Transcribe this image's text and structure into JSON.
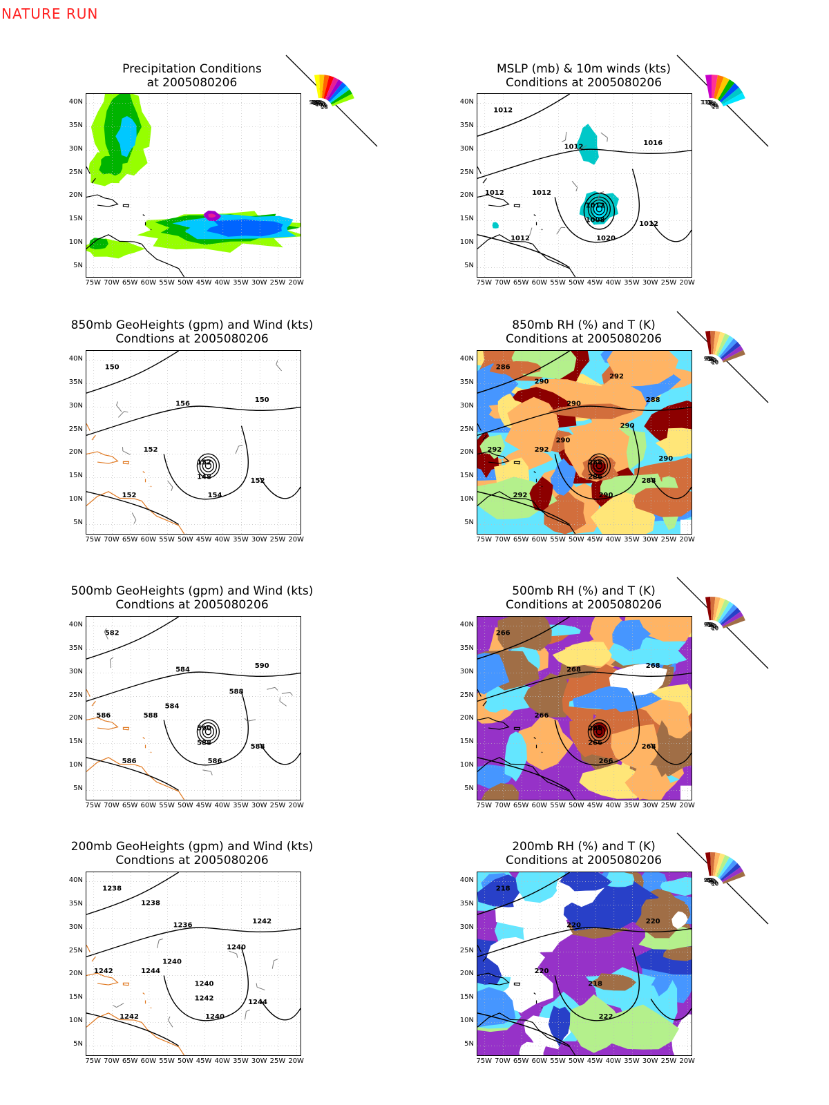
{
  "header": {
    "label": "NATURE RUN"
  },
  "axes": {
    "x_ticks": [
      "75W",
      "70W",
      "65W",
      "60W",
      "55W",
      "50W",
      "45W",
      "40W",
      "35W",
      "30W",
      "25W",
      "20W"
    ],
    "y_ticks": [
      "40N",
      "35N",
      "30N",
      "25N",
      "20N",
      "15N",
      "10N",
      "5N"
    ]
  },
  "panels": [
    {
      "id": "precip",
      "title1": "Precipitation Conditions",
      "title2": "at 2005080206",
      "type": "precip",
      "scale": [
        "500",
        "400",
        "300",
        "250",
        "200",
        "150",
        "100",
        "75",
        "50",
        "25"
      ],
      "scale_colors": [
        "#ffff00",
        "#ffc800",
        "#ff6400",
        "#ff0000",
        "#e61e96",
        "#a000c8",
        "#0064ff",
        "#00c8ff",
        "#00b400",
        "#96ff00"
      ],
      "contour_labels": []
    },
    {
      "id": "mslp",
      "title1": "MSLP (mb) & 10m winds (kts)",
      "title2": "Conditions at 2005080206",
      "type": "mslp",
      "scale": [
        "137",
        "113",
        "96",
        "83",
        "64",
        "50",
        "34",
        "20"
      ],
      "scale_colors": [
        "#c800c8",
        "#ff3296",
        "#ff7800",
        "#ffc800",
        "#00b400",
        "#0050ff",
        "#00c8c8",
        "#00e6ff"
      ],
      "contour_labels": [
        "1012",
        "1012",
        "1020",
        "1016",
        "1012",
        "1012",
        "1008",
        "1012",
        "1012",
        "1012"
      ]
    },
    {
      "id": "h850",
      "title1": "850mb GeoHeights (gpm) and Wind (kts)",
      "title2": "Condtions at 2005080206",
      "type": "height",
      "contour_labels": [
        "150",
        "156",
        "154",
        "150",
        "152",
        "152",
        "148",
        "152",
        "152"
      ]
    },
    {
      "id": "rh850",
      "title1": "850mb RH (%) and T (K)",
      "title2": "Conditions at 2005080206",
      "type": "rh",
      "scale": [
        "90",
        "80",
        "70",
        "60",
        "50",
        "40",
        "30",
        "20",
        "10"
      ],
      "scale_colors": [
        "#8c0000",
        "#d26e3c",
        "#ffb464",
        "#ffe678",
        "#b4f08c",
        "#64e6ff",
        "#4696ff",
        "#2840c8",
        "#9632c8",
        "#a06e46"
      ],
      "contour_labels": [
        "286",
        "290",
        "290",
        "288",
        "292",
        "288",
        "286",
        "288",
        "292",
        "292",
        "290",
        "290",
        "290",
        "292",
        "290"
      ]
    },
    {
      "id": "h500",
      "title1": "500mb GeoHeights (gpm) and Wind (kts)",
      "title2": "Condtions at 2005080206",
      "type": "height",
      "contour_labels": [
        "582",
        "584",
        "586",
        "590",
        "588",
        "590",
        "588",
        "588",
        "586",
        "586",
        "584",
        "588"
      ]
    },
    {
      "id": "rh500",
      "title1": "500mb RH (%) and T (K)",
      "title2": "Conditions at 2005080206",
      "type": "rh",
      "scale": [
        "90",
        "80",
        "70",
        "60",
        "50",
        "40",
        "30",
        "20",
        "10"
      ],
      "scale_colors": [
        "#8c0000",
        "#d26e3c",
        "#ffb464",
        "#ffe678",
        "#b4f08c",
        "#64e6ff",
        "#4696ff",
        "#2840c8",
        "#9632c8",
        "#a06e46"
      ],
      "contour_labels": [
        "266",
        "268",
        "266",
        "268",
        "266",
        "266",
        "266",
        "268"
      ]
    },
    {
      "id": "h200",
      "title1": "200mb GeoHeights (gpm) and Wind (kts)",
      "title2": "Condtions at 2005080206",
      "type": "height",
      "contour_labels": [
        "1238",
        "1236",
        "1240",
        "1242",
        "1244",
        "1240",
        "1242",
        "1244",
        "1242",
        "1242",
        "1240",
        "1240",
        "1238"
      ]
    },
    {
      "id": "rh200",
      "title1": "200mb RH (%) and T (K)",
      "title2": "Conditions at 2005080206",
      "type": "rh",
      "scale": [
        "90",
        "80",
        "70",
        "60",
        "50",
        "40",
        "30",
        "20",
        "10"
      ],
      "scale_colors": [
        "#8c0000",
        "#d26e3c",
        "#ffb464",
        "#ffe678",
        "#b4f08c",
        "#64e6ff",
        "#4696ff",
        "#2840c8",
        "#9632c8",
        "#a06e46"
      ],
      "contour_labels": [
        "218",
        "220",
        "222",
        "220",
        "220",
        "218"
      ]
    }
  ]
}
